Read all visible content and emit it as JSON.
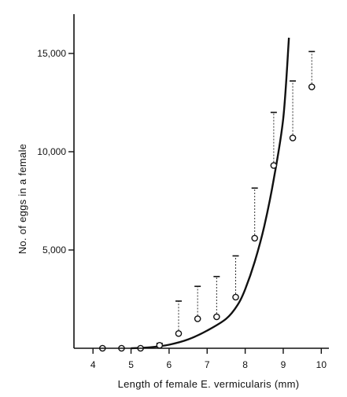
{
  "chart_data": {
    "type": "scatter",
    "xlabel": "Length of female E. vermicularis (mm)",
    "ylabel": "No. of eggs in a female",
    "xlim": [
      3.5,
      10.2
    ],
    "ylim": [
      0,
      17000
    ],
    "grid": false,
    "legend": "none",
    "x_ticks": [
      4,
      5,
      6,
      7,
      8,
      9,
      10
    ],
    "x_tick_labels": [
      "4",
      "5",
      "6",
      "7",
      "8",
      "9",
      "10"
    ],
    "y_ticks": [
      5000,
      10000,
      15000
    ],
    "y_tick_labels": [
      "5,000",
      "10,000",
      "15,000"
    ],
    "series": [
      {
        "type": "scatter",
        "marker": "open-circle",
        "points": [
          {
            "x": 4.25,
            "y": 0,
            "upper": 0
          },
          {
            "x": 4.75,
            "y": 0,
            "upper": 0
          },
          {
            "x": 5.25,
            "y": 0,
            "upper": 0
          },
          {
            "x": 5.75,
            "y": 150,
            "upper": 250
          },
          {
            "x": 6.25,
            "y": 750,
            "upper": 2400
          },
          {
            "x": 6.75,
            "y": 1500,
            "upper": 3150
          },
          {
            "x": 7.25,
            "y": 1600,
            "upper": 3650
          },
          {
            "x": 7.75,
            "y": 2600,
            "upper": 4700
          },
          {
            "x": 8.25,
            "y": 5600,
            "upper": 8150
          },
          {
            "x": 8.75,
            "y": 9300,
            "upper": 12000
          },
          {
            "x": 9.25,
            "y": 10700,
            "upper": 13600
          },
          {
            "x": 9.75,
            "y": 13300,
            "upper": 15100
          }
        ]
      },
      {
        "type": "line",
        "style": "fitted-curve",
        "x": [
          5.0,
          5.5,
          6.0,
          6.5,
          7.0,
          7.5,
          7.8,
          8.0,
          8.25,
          8.5,
          8.75,
          9.0,
          9.15
        ],
        "y": [
          0,
          50,
          180,
          450,
          900,
          1500,
          2200,
          3000,
          4400,
          6200,
          8600,
          11700,
          15800
        ]
      }
    ]
  }
}
